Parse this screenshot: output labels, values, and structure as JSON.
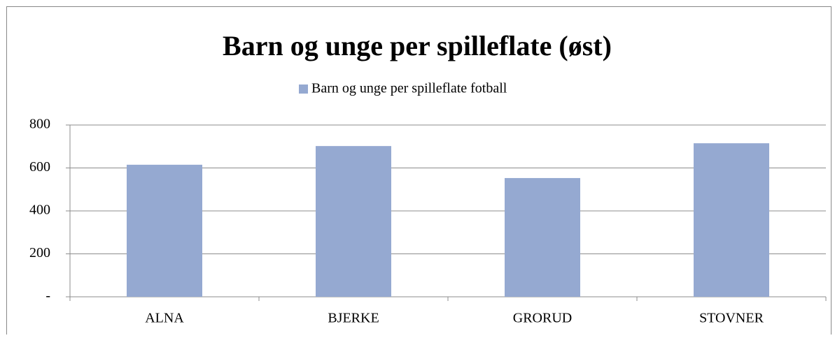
{
  "chart_data": {
    "type": "bar",
    "title": "Barn og unge per spilleflate (øst)",
    "categories": [
      "ALNA",
      "BJERKE",
      "GRORUD",
      "STOVNER"
    ],
    "series": [
      {
        "name": "Barn og unge per spilleflate fotball",
        "color": "#95a9d1",
        "values": [
          615,
          702,
          553,
          715
        ]
      }
    ],
    "ylim": [
      0,
      800
    ],
    "yticks": [
      {
        "value": 0,
        "label": "-"
      },
      200,
      400,
      600,
      800
    ],
    "grid": true,
    "legend": "top"
  }
}
